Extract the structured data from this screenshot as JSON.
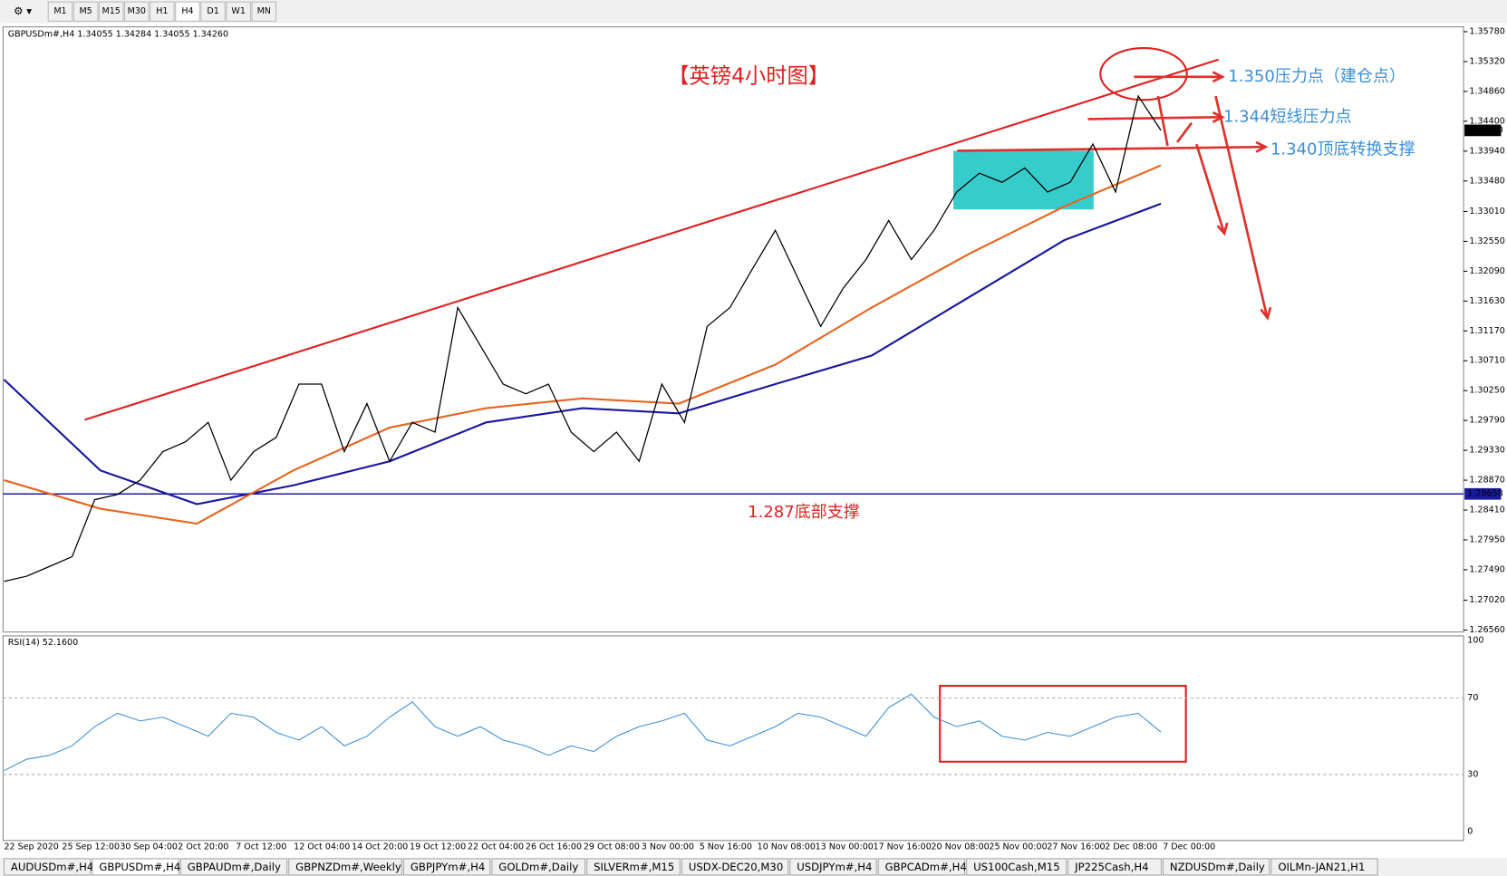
{
  "toolbar": {
    "timeframes": [
      "M1",
      "M5",
      "M15",
      "M30",
      "H1",
      "H4",
      "D1",
      "W1",
      "MN"
    ]
  },
  "chart": {
    "symbol_info": "GBPUSDm#,H4  1.34055 1.34284 1.34055 1.34260",
    "title": "【英镑4小时图】",
    "annotations": [
      "1.350压力点（建仓点）",
      "1.344短线压力点",
      "1.340顶底转换支撑",
      "1.287底部支撑"
    ],
    "ylim": [
      1.2656,
      1.3578
    ],
    "yticks": [
      {
        "value": 1.3578,
        "label": "1.35780"
      },
      {
        "value": 1.3532,
        "label": "1.35320"
      },
      {
        "value": 1.3486,
        "label": "1.34860"
      },
      {
        "value": 1.344,
        "label": "1.34400"
      },
      {
        "value": 1.3394,
        "label": "1.33940"
      },
      {
        "value": 1.3348,
        "label": "1.33480"
      },
      {
        "value": 1.3301,
        "label": "1.33010"
      },
      {
        "value": 1.3255,
        "label": "1.32550"
      },
      {
        "value": 1.3209,
        "label": "1.32090"
      },
      {
        "value": 1.3163,
        "label": "1.31630"
      },
      {
        "value": 1.3117,
        "label": "1.31170"
      },
      {
        "value": 1.3071,
        "label": "1.30710"
      },
      {
        "value": 1.3025,
        "label": "1.30250"
      },
      {
        "value": 1.2979,
        "label": "1.29790"
      },
      {
        "value": 1.2933,
        "label": "1.29330"
      },
      {
        "value": 1.2887,
        "label": "1.28870"
      },
      {
        "value": 1.2841,
        "label": "1.28410"
      },
      {
        "value": 1.2795,
        "label": "1.27950"
      },
      {
        "value": 1.2749,
        "label": "1.27490"
      },
      {
        "value": 1.2702,
        "label": "1.27020"
      },
      {
        "value": 1.2656,
        "label": "1.26560"
      }
    ],
    "current_price": {
      "value": 1.3426,
      "label": "1.34260"
    },
    "support_level": {
      "value": 1.28658,
      "label": "1.28658"
    },
    "x_labels": [
      "22 Sep 2020",
      "25 Sep 12:00",
      "30 Sep 04:00",
      "2 Oct 20:00",
      "7 Oct 12:00",
      "12 Oct 04:00",
      "14 Oct 20:00",
      "19 Oct 12:00",
      "22 Oct 04:00",
      "26 Oct 16:00",
      "29 Oct 08:00",
      "3 Nov 00:00",
      "5 Nov 16:00",
      "10 Nov 08:00",
      "13 Nov 00:00",
      "17 Nov 16:00",
      "20 Nov 08:00",
      "25 Nov 00:00",
      "27 Nov 16:00",
      "2 Dec 08:00",
      "7 Dec 00:00"
    ],
    "close": [
      1.2731,
      1.2739,
      1.2754,
      1.2769,
      1.2857,
      1.2865,
      1.2887,
      1.2931,
      1.2946,
      1.2976,
      1.2887,
      1.2931,
      1.2953,
      1.3035,
      1.3035,
      1.2931,
      1.3005,
      1.2916,
      1.2976,
      1.2961,
      1.3153,
      1.3094,
      1.3035,
      1.302,
      1.3035,
      1.2961,
      1.2931,
      1.2961,
      1.2916,
      1.3035,
      1.2976,
      1.3124,
      1.3153,
      1.3213,
      1.3272,
      1.3198,
      1.3124,
      1.3183,
      1.3227,
      1.3287,
      1.3227,
      1.3272,
      1.3331,
      1.336,
      1.3346,
      1.3368,
      1.3331,
      1.3346,
      1.3405,
      1.3331,
      1.3479,
      1.3426
    ],
    "ma_fast": [
      1.2887,
      1.2843,
      1.282,
      1.2902,
      1.2968,
      1.2998,
      1.3013,
      1.3005,
      1.3065,
      1.3153,
      1.3235,
      1.3309,
      1.3372
    ],
    "ma_slow": [
      1.3042,
      1.2902,
      1.285,
      1.2879,
      1.2916,
      1.2976,
      1.2998,
      1.299,
      1.3035,
      1.3079,
      1.3168,
      1.3257,
      1.3313
    ]
  },
  "rsi": {
    "label": "RSI(14) 52.1600",
    "ylim": [
      0,
      100
    ],
    "yticks": [
      0,
      30,
      70,
      100
    ],
    "values": [
      32,
      38,
      40,
      45,
      55,
      62,
      58,
      60,
      55,
      50,
      62,
      60,
      52,
      48,
      55,
      45,
      50,
      60,
      68,
      55,
      50,
      55,
      48,
      45,
      40,
      45,
      42,
      50,
      55,
      58,
      62,
      48,
      45,
      50,
      55,
      62,
      60,
      55,
      50,
      65,
      72,
      60,
      55,
      58,
      50,
      48,
      52,
      50,
      55,
      60,
      62,
      52.16
    ]
  },
  "tabs": [
    "AUDUSDm#,H4",
    "GBPUSDm#,H4",
    "GBPAUDm#,Daily",
    "GBPNZDm#,Weekly",
    "GBPJPYm#,H4",
    "GOLDm#,Daily",
    "SILVERm#,M15",
    "USDX-DEC20,M30",
    "USDJPYm#,H4",
    "GBPCADm#,H4",
    "US100Cash,M15",
    "JP225Cash,H4",
    "NZDUSDm#,Daily",
    "OILMn-JAN21,H1"
  ]
}
